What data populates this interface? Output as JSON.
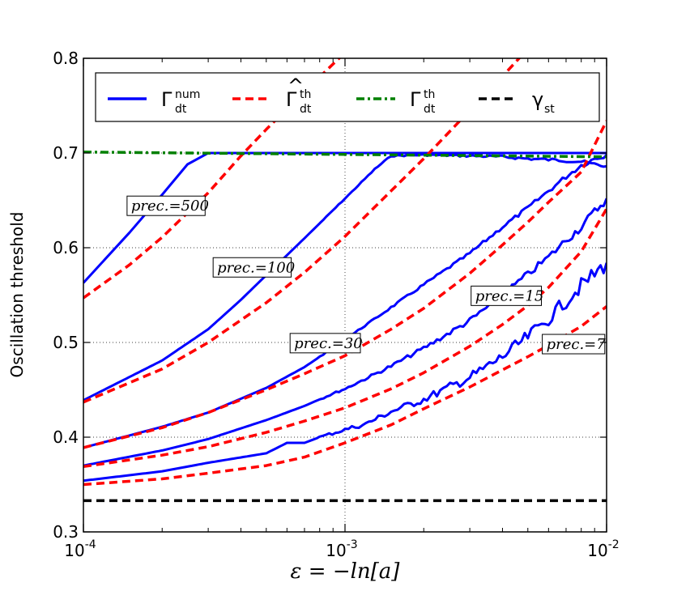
{
  "chart_data": {
    "type": "line",
    "xscale": "log",
    "xlabel": "ε = −ln[a]",
    "ylabel": "Oscillation threshold",
    "xlim": [
      0.0001,
      0.01
    ],
    "ylim": [
      0.3,
      0.8
    ],
    "grid": true,
    "legend_position": "top",
    "xticks": [
      {
        "value": 0.0001,
        "base": "10",
        "exp": "-4"
      },
      {
        "value": 0.001,
        "base": "10",
        "exp": "-3"
      },
      {
        "value": 0.01,
        "base": "10",
        "exp": "-2"
      }
    ],
    "yticks": [
      {
        "value": 0.3,
        "label": "0.3"
      },
      {
        "value": 0.4,
        "label": "0.4"
      },
      {
        "value": 0.5,
        "label": "0.5"
      },
      {
        "value": 0.6,
        "label": "0.6"
      },
      {
        "value": 0.7,
        "label": "0.7"
      },
      {
        "value": 0.8,
        "label": "0.8"
      }
    ],
    "legend": [
      {
        "symbol": "Γ",
        "hat": false,
        "sup": "num",
        "sub": "dt",
        "color": "#0000ff",
        "dash": "solid"
      },
      {
        "symbol": "Γ",
        "hat": true,
        "sup": "th",
        "sub": "dt",
        "color": "#ff0000",
        "dash": "dashed"
      },
      {
        "symbol": "Γ",
        "hat": false,
        "sup": "th",
        "sub": "dt",
        "color": "#008000",
        "dash": "dashdot"
      },
      {
        "symbol": "γ",
        "hat": false,
        "sup": "",
        "sub": "st",
        "color": "#000000",
        "dash": "dashed"
      }
    ],
    "series": [
      {
        "name": "numerical prec.=500",
        "kind": "num",
        "color": "#0000ff",
        "style": "solid",
        "x": [
          0.0001,
          0.00015,
          0.0002,
          0.00025,
          0.0003,
          0.01
        ],
        "y": [
          0.563,
          0.616,
          0.656,
          0.688,
          0.7,
          0.7
        ]
      },
      {
        "name": "numerical prec.=100",
        "kind": "num",
        "color": "#0000ff",
        "style": "solid",
        "noise": 0.002,
        "x": [
          0.0001,
          0.0002,
          0.0003,
          0.0004,
          0.0005,
          0.0007,
          0.001,
          0.0013,
          0.0015,
          0.002,
          0.003,
          0.004,
          0.005,
          0.006,
          0.007,
          0.008,
          0.009,
          0.01
        ],
        "y": [
          0.439,
          0.481,
          0.514,
          0.545,
          0.571,
          0.61,
          0.652,
          0.683,
          0.697,
          0.698,
          0.697,
          0.696,
          0.694,
          0.693,
          0.692,
          0.691,
          0.688,
          0.686
        ]
      },
      {
        "name": "numerical prec.=30",
        "kind": "num",
        "color": "#0000ff",
        "style": "solid",
        "noise": 0.003,
        "x": [
          0.0001,
          0.0002,
          0.0003,
          0.0005,
          0.0007,
          0.001,
          0.0015,
          0.002,
          0.003,
          0.004,
          0.005,
          0.006,
          0.007,
          0.008,
          0.009,
          0.01
        ],
        "y": [
          0.389,
          0.411,
          0.426,
          0.452,
          0.474,
          0.503,
          0.537,
          0.561,
          0.594,
          0.622,
          0.642,
          0.66,
          0.675,
          0.687,
          0.694,
          0.698
        ]
      },
      {
        "name": "numerical prec.=15",
        "kind": "num",
        "color": "#0000ff",
        "style": "solid",
        "noise": 0.005,
        "x": [
          0.0001,
          0.0002,
          0.0003,
          0.0005,
          0.0007,
          0.0009,
          0.001,
          0.0015,
          0.002,
          0.003,
          0.004,
          0.005,
          0.006,
          0.007,
          0.008,
          0.009,
          0.01
        ],
        "y": [
          0.37,
          0.386,
          0.398,
          0.418,
          0.433,
          0.446,
          0.451,
          0.475,
          0.494,
          0.523,
          0.55,
          0.572,
          0.59,
          0.608,
          0.622,
          0.638,
          0.652
        ]
      },
      {
        "name": "numerical prec.=7",
        "kind": "num",
        "color": "#0000ff",
        "style": "solid",
        "noise": 0.009,
        "x": [
          0.0001,
          0.0002,
          0.0003,
          0.0005,
          0.0006,
          0.0007,
          0.0008,
          0.001,
          0.0012,
          0.0015,
          0.002,
          0.003,
          0.004,
          0.005,
          0.006,
          0.007,
          0.008,
          0.009,
          0.01
        ],
        "y": [
          0.354,
          0.364,
          0.373,
          0.383,
          0.394,
          0.394,
          0.4,
          0.408,
          0.414,
          0.427,
          0.44,
          0.463,
          0.485,
          0.506,
          0.525,
          0.544,
          0.56,
          0.572,
          0.584
        ]
      },
      {
        "name": "theory prec.=500",
        "kind": "th",
        "color": "#ff0000",
        "style": "dashed",
        "x": [
          0.0001,
          0.00015,
          0.0002,
          0.0003,
          0.0004,
          0.0005,
          0.0007,
          0.001,
          0.0012
        ],
        "y": [
          0.547,
          0.582,
          0.611,
          0.658,
          0.697,
          0.725,
          0.765,
          0.806,
          0.826
        ]
      },
      {
        "name": "theory prec.=100",
        "kind": "th",
        "color": "#ff0000",
        "style": "dashed",
        "x": [
          0.0001,
          0.0002,
          0.0003,
          0.0005,
          0.0007,
          0.001,
          0.0015,
          0.002,
          0.003,
          0.004,
          0.005
        ],
        "y": [
          0.437,
          0.472,
          0.5,
          0.542,
          0.574,
          0.612,
          0.66,
          0.694,
          0.745,
          0.781,
          0.81
        ]
      },
      {
        "name": "theory prec.=30",
        "kind": "th",
        "color": "#ff0000",
        "style": "dashed",
        "x": [
          0.0001,
          0.0002,
          0.0003,
          0.0005,
          0.0007,
          0.001,
          0.0015,
          0.002,
          0.003,
          0.004,
          0.005,
          0.006,
          0.008,
          0.01
        ],
        "y": [
          0.389,
          0.41,
          0.426,
          0.45,
          0.467,
          0.486,
          0.514,
          0.536,
          0.573,
          0.603,
          0.627,
          0.648,
          0.68,
          0.734
        ]
      },
      {
        "name": "theory prec.=15",
        "kind": "th",
        "color": "#ff0000",
        "style": "dashed",
        "x": [
          0.0001,
          0.0002,
          0.0003,
          0.0005,
          0.0007,
          0.001,
          0.0015,
          0.002,
          0.003,
          0.004,
          0.005,
          0.006,
          0.008,
          0.01
        ],
        "y": [
          0.369,
          0.381,
          0.39,
          0.405,
          0.417,
          0.431,
          0.451,
          0.468,
          0.496,
          0.519,
          0.539,
          0.558,
          0.596,
          0.641
        ]
      },
      {
        "name": "theory prec.=7",
        "kind": "th",
        "color": "#ff0000",
        "style": "dashed",
        "x": [
          0.0001,
          0.0002,
          0.0003,
          0.0005,
          0.0007,
          0.001,
          0.0015,
          0.002,
          0.003,
          0.004,
          0.005,
          0.006,
          0.008,
          0.01
        ],
        "y": [
          0.35,
          0.356,
          0.362,
          0.37,
          0.379,
          0.394,
          0.413,
          0.43,
          0.453,
          0.471,
          0.485,
          0.497,
          0.517,
          0.538
        ]
      },
      {
        "name": "Γdt th",
        "kind": "limit",
        "color": "#008000",
        "style": "dashdot",
        "x": [
          0.0001,
          0.01
        ],
        "y": [
          0.701,
          0.696
        ]
      },
      {
        "name": "γst",
        "kind": "limit",
        "color": "#000000",
        "style": "dashed",
        "x": [
          0.0001,
          0.01
        ],
        "y": [
          0.333,
          0.333
        ]
      }
    ],
    "annotations": [
      {
        "label": "prec.=500",
        "x": 0.00015,
        "y": 0.64
      },
      {
        "label": "prec.=100",
        "x": 0.00032,
        "y": 0.575
      },
      {
        "label": "prec.=30",
        "x": 0.00063,
        "y": 0.495
      },
      {
        "label": "prec.=15",
        "x": 0.0031,
        "y": 0.545
      },
      {
        "label": "prec.=7",
        "x": 0.0058,
        "y": 0.494
      }
    ]
  }
}
